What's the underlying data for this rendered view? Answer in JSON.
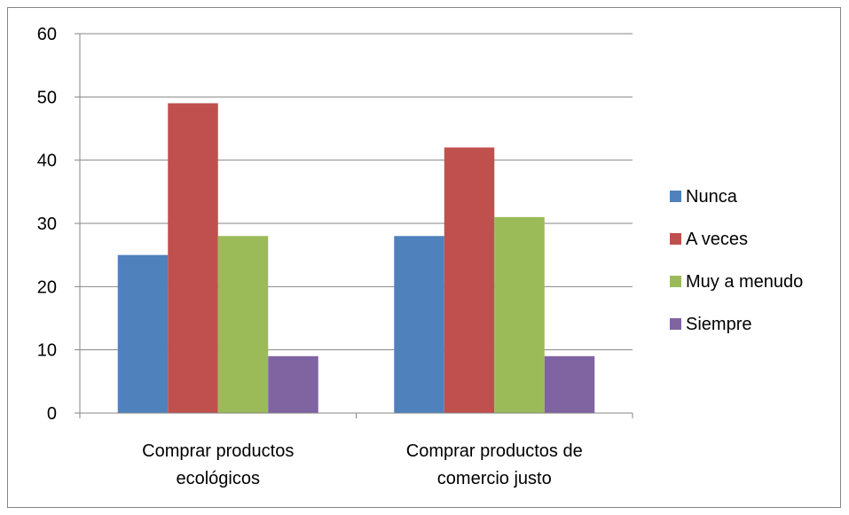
{
  "chart_data": {
    "type": "bar",
    "categories": [
      [
        "Comprar productos",
        "ecológicos"
      ],
      [
        "Comprar productos de",
        "comercio justo"
      ]
    ],
    "series": [
      {
        "name": "Nunca",
        "color": "#4F81BD",
        "values": [
          25,
          28
        ]
      },
      {
        "name": "A veces",
        "color": "#C0504D",
        "values": [
          49,
          42
        ]
      },
      {
        "name": "Muy a menudo",
        "color": "#9BBB59",
        "values": [
          28,
          31
        ]
      },
      {
        "name": "Siempre",
        "color": "#8064A2",
        "values": [
          9,
          9
        ]
      }
    ],
    "ylim": [
      0,
      60
    ],
    "yticks": [
      0,
      10,
      20,
      30,
      40,
      50,
      60
    ],
    "grid": true,
    "legend": "right"
  }
}
